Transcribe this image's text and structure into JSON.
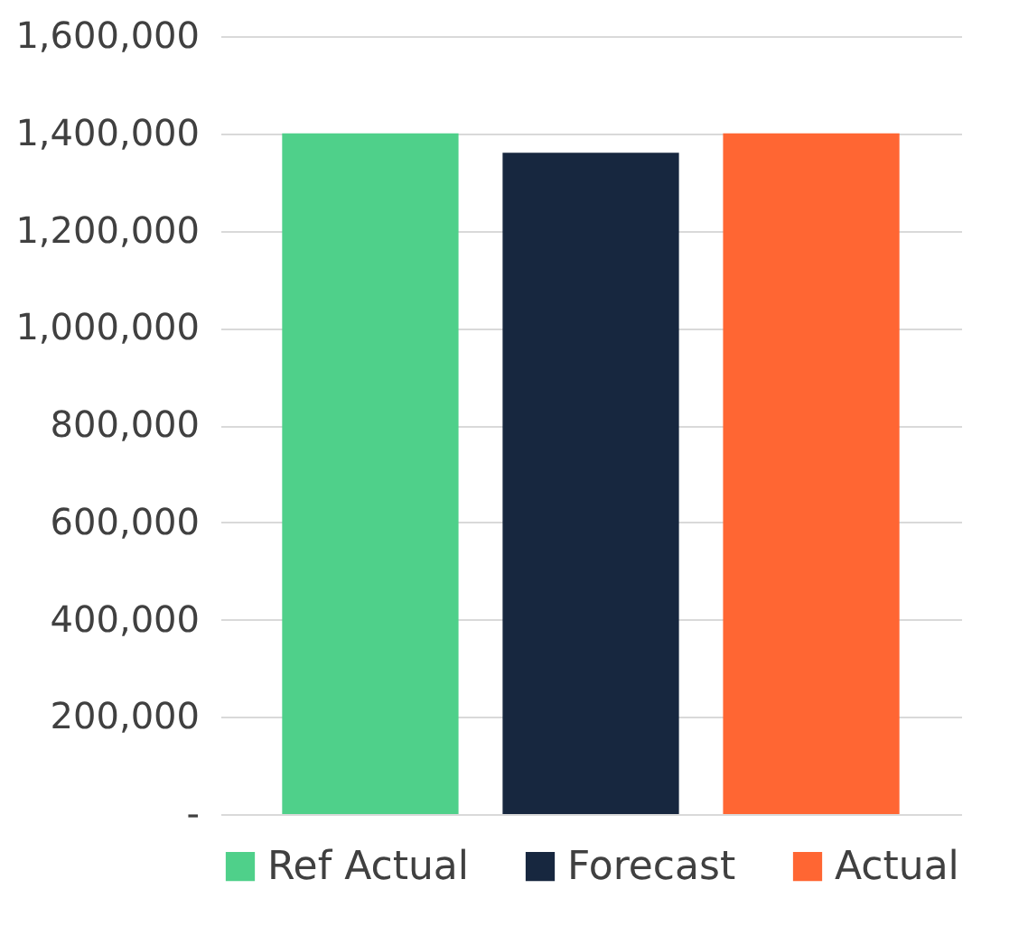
{
  "chart_data": {
    "type": "bar",
    "categories": [
      null
    ],
    "series": [
      {
        "name": "Ref Actual",
        "color": "#4fd08a",
        "values": [
          1400000
        ]
      },
      {
        "name": "Forecast",
        "color": "#17273f",
        "values": [
          1360000
        ]
      },
      {
        "name": "Actual",
        "color": "#ff6633",
        "values": [
          1400000
        ]
      }
    ],
    "ylim": [
      0,
      1600000
    ],
    "yticks": [
      {
        "value": 0,
        "label": "-"
      },
      {
        "value": 200000,
        "label": "200,000"
      },
      {
        "value": 400000,
        "label": "400,000"
      },
      {
        "value": 600000,
        "label": "600,000"
      },
      {
        "value": 800000,
        "label": "800,000"
      },
      {
        "value": 1000000,
        "label": "1,000,000"
      },
      {
        "value": 1200000,
        "label": "1,200,000"
      },
      {
        "value": 1400000,
        "label": "1,400,000"
      },
      {
        "value": 1600000,
        "label": "1,600,000"
      }
    ],
    "grid": "y",
    "legend": "bottom"
  }
}
